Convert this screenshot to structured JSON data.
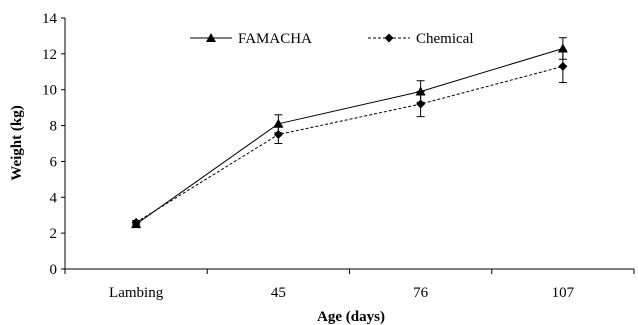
{
  "chart_data": {
    "type": "line",
    "title": "",
    "xlabel": "Age (days)",
    "ylabel": "Weight (kg)",
    "categories": [
      "Lambing",
      "45",
      "76",
      "107"
    ],
    "ylim": [
      0,
      14
    ],
    "yticks": [
      0,
      2,
      4,
      6,
      8,
      10,
      12,
      14
    ],
    "grid": false,
    "legend_position": "top-center",
    "series": [
      {
        "name": "FAMACHA",
        "marker": "triangle",
        "line_style": "solid",
        "color": "#000000",
        "values": [
          2.5,
          8.1,
          9.9,
          12.3
        ],
        "error": [
          0.1,
          0.5,
          0.6,
          0.6
        ]
      },
      {
        "name": "Chemical",
        "marker": "diamond",
        "line_style": "dashed",
        "color": "#000000",
        "values": [
          2.6,
          7.5,
          9.2,
          11.3
        ],
        "error": [
          0.1,
          0.5,
          0.7,
          0.9
        ]
      }
    ]
  }
}
